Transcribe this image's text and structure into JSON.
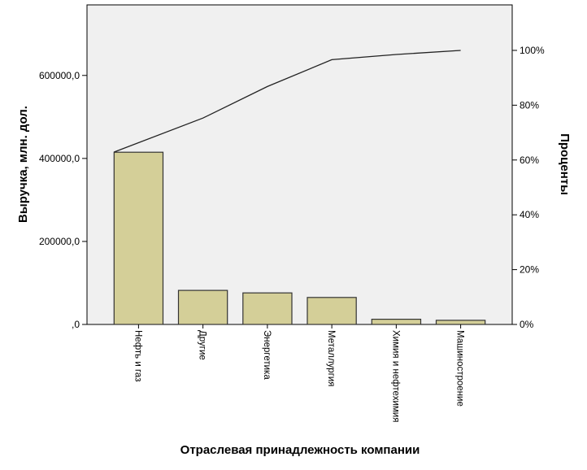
{
  "chart_data": {
    "type": "bar",
    "subtype": "pareto",
    "xlabel": "Отраслевая принадлежность компании",
    "ylabel": "Выручка, млн. дол.",
    "y2label": "Проценты",
    "categories": [
      "Нефть и газ",
      "Другие",
      "Энергетика",
      "Металлургия",
      "Химия и нефтехимия",
      "Машиностроение"
    ],
    "values": [
      415000,
      82000,
      76000,
      65000,
      12500,
      10000
    ],
    "cumulative_percent": [
      62.9,
      75.3,
      86.8,
      96.6,
      98.5,
      100.0
    ],
    "ylim": [
      0,
      770000
    ],
    "y2lim": [
      0,
      116.6
    ],
    "yticks": [
      0,
      200000,
      400000,
      600000
    ],
    "ytick_labels": [
      ",0",
      "200000,0",
      "400000,0",
      "600000,0"
    ],
    "y2ticks": [
      0,
      20,
      40,
      60,
      80,
      100
    ],
    "y2tick_labels": [
      "0%",
      "20%",
      "40%",
      "60%",
      "80%",
      "100%"
    ],
    "grid": false,
    "legend": "none",
    "colors": {
      "plot_background": "#f0f0f0",
      "bar_fill": "#d4cf98",
      "bar_stroke": "#333333",
      "line": "#222222"
    }
  }
}
